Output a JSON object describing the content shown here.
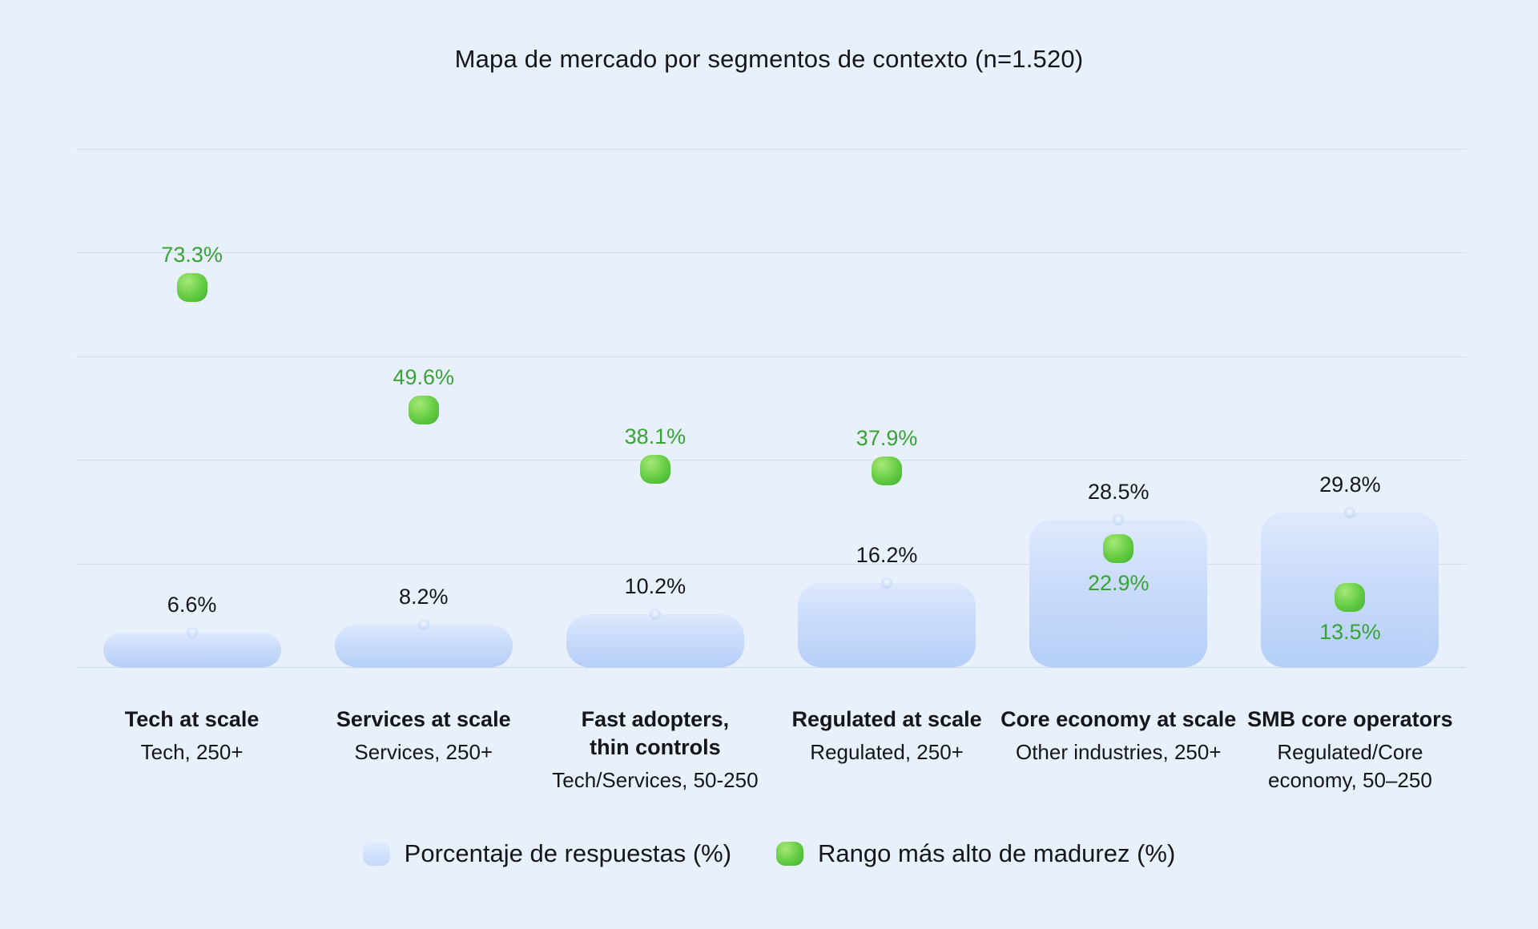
{
  "title": "Mapa de mercado por segmentos de contexto (n=1.520)",
  "legend": [
    {
      "label": "Porcentaje de respuestas (%)",
      "swatch": "blue-bar"
    },
    {
      "label": "Rango más alto de madurez (%)",
      "swatch": "green-dot"
    }
  ],
  "colors": {
    "background": "#e8f0fb",
    "bar_top": "#dde9fd",
    "bar_bottom": "#b5cff8",
    "dot_green": "#63cc42",
    "green_label": "#38a335",
    "text": "#14161a",
    "gridline": "#d2dff2"
  },
  "chart_data": {
    "type": "bar",
    "title": "Mapa de mercado por segmentos de contexto (n=1.520)",
    "categories": [
      {
        "name_lines": [
          "Tech at scale"
        ],
        "sub_lines": [
          "Tech, 250+"
        ]
      },
      {
        "name_lines": [
          "Services at scale"
        ],
        "sub_lines": [
          "Services, 250+"
        ]
      },
      {
        "name_lines": [
          "Fast adopters,",
          "thin controls"
        ],
        "sub_lines": [
          "Tech/Services, 50-250"
        ]
      },
      {
        "name_lines": [
          "Regulated at scale"
        ],
        "sub_lines": [
          "Regulated, 250+"
        ]
      },
      {
        "name_lines": [
          "Core economy at scale"
        ],
        "sub_lines": [
          "Other industries, 250+"
        ]
      },
      {
        "name_lines": [
          "SMB core operators"
        ],
        "sub_lines": [
          "Regulated/Core",
          "economy, 50–250"
        ]
      }
    ],
    "series": [
      {
        "name": "Porcentaje de respuestas (%)",
        "type": "bar",
        "values": [
          6.6,
          8.2,
          10.2,
          16.2,
          28.5,
          29.8
        ]
      },
      {
        "name": "Rango más alto de madurez (%)",
        "type": "dot",
        "values": [
          73.3,
          49.6,
          38.1,
          37.9,
          22.9,
          13.5
        ]
      }
    ],
    "xlabel": "",
    "ylabel": "",
    "ylim": [
      0,
      100
    ],
    "gridlines": [
      0,
      20,
      40,
      60,
      80,
      100
    ],
    "grid": true,
    "legend_position": "bottom"
  }
}
